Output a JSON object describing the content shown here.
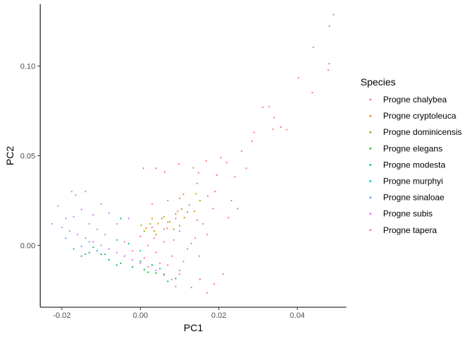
{
  "chart_data": {
    "type": "scatter",
    "title": "",
    "xlabel": "PC1",
    "ylabel": "PC2",
    "xlim": [
      -0.0255,
      0.0525
    ],
    "ylim": [
      -0.0345,
      0.1345
    ],
    "x_ticks": [
      -0.02,
      0.0,
      0.02,
      0.04
    ],
    "x_tick_labels": [
      "-0.02",
      "0.00",
      "0.02",
      "0.04"
    ],
    "y_ticks": [
      0.0,
      0.05,
      0.1
    ],
    "y_tick_labels": [
      "0.00",
      "0.05",
      "0.10"
    ],
    "grid": false,
    "legend": {
      "title": "Species",
      "position": "right"
    },
    "series": [
      {
        "name": "Progne chalybea",
        "color": "#F8766D",
        "points": [
          [
            0.0492,
            0.1288
          ],
          [
            0.0482,
            0.1223
          ],
          [
            0.0441,
            0.1105
          ],
          [
            0.0481,
            0.1013
          ],
          [
            0.0479,
            0.0978
          ],
          [
            0.0403,
            0.0935
          ],
          [
            0.0438,
            0.0852
          ],
          [
            0.0328,
            0.0775
          ],
          [
            0.0312,
            0.077
          ],
          [
            0.0341,
            0.0713
          ],
          [
            0.0358,
            0.066
          ],
          [
            0.0338,
            0.0648
          ],
          [
            0.0373,
            0.0645
          ],
          [
            0.029,
            0.063
          ],
          [
            0.0285,
            0.0581
          ],
          [
            0.0258,
            0.0525
          ],
          [
            0.0205,
            0.049
          ],
          [
            0.022,
            0.0462
          ],
          [
            0.0168,
            0.0472
          ],
          [
            0.0135,
            0.0432
          ],
          [
            0.0098,
            0.0455
          ],
          [
            0.0062,
            0.041
          ],
          [
            0.0148,
            0.0405
          ],
          [
            0.0195,
            0.0392
          ],
          [
            0.0241,
            0.0382
          ],
          [
            0.0232,
            0.025
          ],
          [
            0.0185,
            0.0205
          ],
          [
            0.0225,
            0.0155
          ],
          [
            0.0248,
            0.0205
          ],
          [
            0.0172,
            0.0275
          ],
          [
            0.0145,
            0.0345
          ],
          [
            0.0211,
            -0.016
          ],
          [
            0.0188,
            -0.0215
          ],
          [
            0.017,
            -0.0265
          ],
          [
            0.0152,
            -0.019
          ],
          [
            0.013,
            -0.0235
          ],
          [
            0.0095,
            0.019
          ],
          [
            0.011,
            0.0285
          ],
          [
            0.007,
            0.025
          ],
          [
            0.003,
            0.023
          ],
          [
            0.019,
            0.03
          ],
          [
            0.01,
            -0.016
          ],
          [
            0.004,
            0.043
          ],
          [
            0.0008,
            0.043
          ],
          [
            0.027,
            0.043
          ]
        ]
      },
      {
        "name": "Progne cryptoleuca",
        "color": "#D39200",
        "points": [
          [
            0.0142,
            0.0288
          ],
          [
            0.0105,
            0.0202
          ],
          [
            0.0075,
            0.0132
          ],
          [
            0.0045,
            0.0121
          ],
          [
            0.0015,
            0.0096
          ],
          [
            0.0125,
            0.0225
          ],
          [
            0.009,
            0.0175
          ],
          [
            0.006,
            0.016
          ],
          [
            0.003,
            0.015
          ],
          [
            0.01,
            0.0262
          ],
          [
            0.0152,
            0.025
          ],
          [
            0.0002,
            0.0112
          ],
          [
            0.0035,
            0.008
          ],
          [
            0.0068,
            0.0095
          ],
          [
            0.0112,
            0.0155
          ],
          [
            0.0138,
            0.019
          ]
        ]
      },
      {
        "name": "Progne dominicensis",
        "color": "#93AA00",
        "points": [
          [
            0.0055,
            0.015
          ],
          [
            0.0025,
            0.012
          ],
          [
            0.0085,
            0.009
          ],
          [
            0.012,
            0.0185
          ],
          [
            0.001,
            0.008
          ],
          [
            0.004,
            0.006
          ],
          [
            0.007,
            0.013
          ],
          [
            0.01,
            0.011
          ]
        ]
      },
      {
        "name": "Progne elegans",
        "color": "#00BA38",
        "points": [
          [
            -0.008,
            -0.008
          ],
          [
            -0.005,
            -0.01
          ],
          [
            -0.002,
            -0.012
          ],
          [
            0.001,
            -0.0135
          ],
          [
            0.004,
            -0.0155
          ],
          [
            -0.01,
            -0.005
          ],
          [
            0.0,
            -0.009
          ],
          [
            -0.004,
            -0.006
          ],
          [
            0.003,
            -0.011
          ],
          [
            -0.013,
            -0.004
          ],
          [
            -0.006,
            -0.011
          ],
          [
            0.002,
            -0.015
          ],
          [
            0.006,
            -0.0165
          ],
          [
            0.009,
            -0.0185
          ],
          [
            0.007,
            -0.02
          ],
          [
            0.005,
            -0.013
          ]
        ]
      },
      {
        "name": "Progne modesta",
        "color": "#00C19F",
        "points": [
          [
            -0.006,
            0.003
          ],
          [
            -0.012,
            -0.001
          ],
          [
            0.0,
            -0.003
          ],
          [
            -0.003,
            0.001
          ],
          [
            -0.009,
            -0.005
          ],
          [
            -0.005,
            0.015
          ],
          [
            -0.015,
            -0.006
          ]
        ]
      },
      {
        "name": "Progne murphyi",
        "color": "#00B9E3",
        "points": [
          [
            -0.017,
            -0.002
          ],
          [
            -0.014,
            -0.005
          ],
          [
            -0.011,
            -0.003
          ]
        ]
      },
      {
        "name": "Progne sinaloae",
        "color": "#619CFF",
        "points": [
          [
            -0.019,
            0.004
          ],
          [
            -0.015,
            -0.0005
          ],
          [
            -0.013,
            0.002
          ]
        ]
      },
      {
        "name": "Progne subis",
        "color": "#DB72FB",
        "points": [
          [
            -0.0225,
            0.012
          ],
          [
            -0.02,
            0.01
          ],
          [
            -0.018,
            0.008
          ],
          [
            -0.016,
            0.006
          ],
          [
            -0.014,
            0.004
          ],
          [
            -0.012,
            0.002
          ],
          [
            -0.01,
            0.0
          ],
          [
            -0.008,
            -0.002
          ],
          [
            -0.006,
            -0.004
          ],
          [
            -0.004,
            -0.006
          ],
          [
            -0.002,
            -0.008
          ],
          [
            0.0,
            -0.01
          ],
          [
            0.002,
            -0.012
          ],
          [
            0.004,
            -0.014
          ],
          [
            0.006,
            -0.016
          ],
          [
            0.008,
            -0.019
          ],
          [
            0.009,
            -0.023
          ],
          [
            -0.021,
            0.022
          ],
          [
            -0.0165,
            0.028
          ],
          [
            -0.0175,
            0.03
          ],
          [
            -0.014,
            0.03
          ],
          [
            -0.01,
            0.023
          ],
          [
            -0.012,
            0.017
          ],
          [
            -0.008,
            0.018
          ],
          [
            -0.006,
            0.012
          ],
          [
            -0.003,
            0.015
          ],
          [
            -0.017,
            0.016
          ],
          [
            -0.015,
            0.02
          ],
          [
            -0.011,
            0.009
          ],
          [
            -0.019,
            0.015
          ],
          [
            -0.013,
            0.012
          ],
          [
            -0.009,
            0.006
          ]
        ]
      },
      {
        "name": "Progne tapera",
        "color": "#FF61C3",
        "points": [
          [
            0.0,
            0.005
          ],
          [
            0.002,
            0.0
          ],
          [
            0.004,
            -0.004
          ],
          [
            0.006,
            0.002
          ],
          [
            0.008,
            -0.006
          ],
          [
            0.01,
            0.008
          ],
          [
            0.012,
            -0.002
          ],
          [
            0.014,
            0.004
          ],
          [
            0.016,
            0.012
          ],
          [
            0.005,
            -0.01
          ],
          [
            -0.002,
            -0.003
          ],
          [
            0.003,
            0.01
          ],
          [
            0.009,
            0.015
          ],
          [
            0.007,
            -0.011
          ],
          [
            0.011,
            -0.009
          ],
          [
            0.013,
            0.001
          ],
          [
            0.015,
            -0.006
          ],
          [
            0.017,
            0.006
          ],
          [
            -0.004,
            0.002
          ],
          [
            0.001,
            -0.007
          ],
          [
            0.006,
            0.009
          ],
          [
            0.01,
            -0.014
          ],
          [
            0.0145,
            0.014
          ],
          [
            0.0035,
            0.004
          ],
          [
            0.0085,
            0.003
          ]
        ]
      }
    ]
  }
}
